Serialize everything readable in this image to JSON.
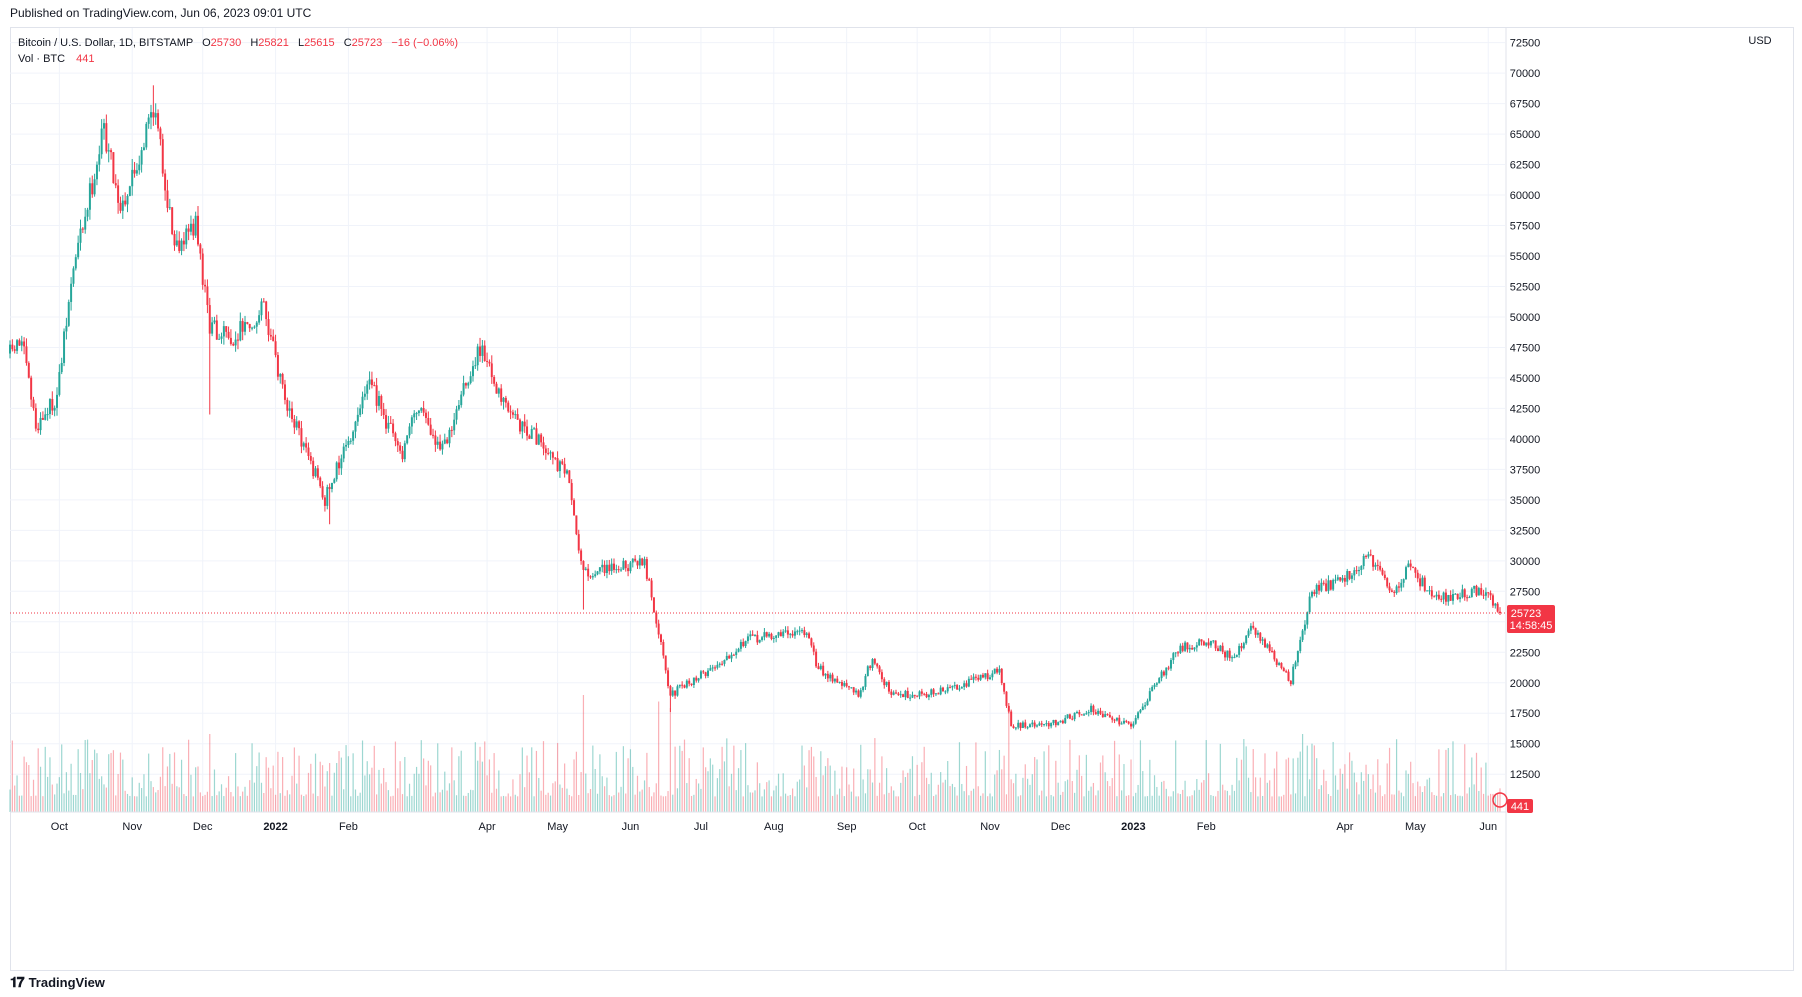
{
  "header": {
    "published": "Published on TradingView.com, Jun 06, 2023 09:01 UTC"
  },
  "legend": {
    "symbol": "Bitcoin / U.S. Dollar, 1D, BITSTAMP",
    "o_label": "O",
    "o_value": "25730",
    "h_label": "H",
    "h_value": "25821",
    "l_label": "L",
    "l_value": "25615",
    "c_label": "C",
    "c_value": "25723",
    "change": "−16 (−0.06%)",
    "vol_label": "Vol · BTC",
    "vol_value": "441"
  },
  "price_axis": {
    "currency": "USD",
    "last_price_label": "25723",
    "countdown": "14:58:45",
    "vol_badge": "441"
  },
  "footer": {
    "brand": "TradingView"
  },
  "colors": {
    "up": "#26a69a",
    "down": "#f23645",
    "grid": "#f0f3fa",
    "axis_text": "#131722"
  },
  "chart_data": {
    "type": "candlestick",
    "title": "Bitcoin / U.S. Dollar, 1D, BITSTAMP",
    "ylabel": "USD",
    "ylim": [
      9400,
      73700
    ],
    "y_ticks": [
      12500,
      15000,
      17500,
      20000,
      22500,
      25000,
      27500,
      30000,
      32500,
      35000,
      37500,
      40000,
      42500,
      45000,
      47500,
      50000,
      52500,
      55000,
      57500,
      60000,
      62500,
      65000,
      67500,
      70000,
      72500
    ],
    "grid": true,
    "x_ticks": [
      {
        "label": "Oct",
        "date": "2021-10-01"
      },
      {
        "label": "Nov",
        "date": "2021-11-01"
      },
      {
        "label": "Dec",
        "date": "2021-12-01"
      },
      {
        "label": "2022",
        "date": "2022-01-01"
      },
      {
        "label": "Feb",
        "date": "2022-02-01"
      },
      {
        "label": "Apr",
        "date": "2022-04-01"
      },
      {
        "label": "May",
        "date": "2022-05-01"
      },
      {
        "label": "Jun",
        "date": "2022-06-01"
      },
      {
        "label": "Jul",
        "date": "2022-07-01"
      },
      {
        "label": "Aug",
        "date": "2022-08-01"
      },
      {
        "label": "Sep",
        "date": "2022-09-01"
      },
      {
        "label": "Oct",
        "date": "2022-10-01"
      },
      {
        "label": "Nov",
        "date": "2022-11-01"
      },
      {
        "label": "Dec",
        "date": "2022-12-01"
      },
      {
        "label": "2023",
        "date": "2023-01-01"
      },
      {
        "label": "Feb",
        "date": "2023-02-01"
      },
      {
        "label": "Apr",
        "date": "2023-04-01"
      },
      {
        "label": "May",
        "date": "2023-05-01"
      },
      {
        "label": "Jun",
        "date": "2023-06-01"
      }
    ],
    "date_range": [
      "2021-09-10",
      "2023-06-06"
    ],
    "last_price": 25723,
    "close_path": [
      {
        "date": "2021-09-10",
        "close": 47000
      },
      {
        "date": "2021-09-15",
        "close": 48000
      },
      {
        "date": "2021-09-21",
        "close": 41000
      },
      {
        "date": "2021-09-30",
        "close": 43500
      },
      {
        "date": "2021-10-07",
        "close": 54000
      },
      {
        "date": "2021-10-20",
        "close": 65500
      },
      {
        "date": "2021-10-27",
        "close": 59000
      },
      {
        "date": "2021-11-03",
        "close": 62500
      },
      {
        "date": "2021-11-10",
        "close": 67500
      },
      {
        "date": "2021-11-19",
        "close": 56000
      },
      {
        "date": "2021-11-28",
        "close": 57500
      },
      {
        "date": "2021-12-04",
        "close": 49000
      },
      {
        "date": "2021-12-14",
        "close": 48500
      },
      {
        "date": "2021-12-27",
        "close": 50700
      },
      {
        "date": "2022-01-05",
        "close": 43500
      },
      {
        "date": "2022-01-22",
        "close": 35000
      },
      {
        "date": "2022-02-10",
        "close": 44500
      },
      {
        "date": "2022-02-24",
        "close": 38500
      },
      {
        "date": "2022-03-03",
        "close": 43000
      },
      {
        "date": "2022-03-12",
        "close": 38800
      },
      {
        "date": "2022-03-29",
        "close": 47500
      },
      {
        "date": "2022-04-10",
        "close": 42000
      },
      {
        "date": "2022-04-25",
        "close": 39500
      },
      {
        "date": "2022-05-05",
        "close": 37000
      },
      {
        "date": "2022-05-12",
        "close": 29000
      },
      {
        "date": "2022-05-28",
        "close": 29500
      },
      {
        "date": "2022-06-07",
        "close": 30000
      },
      {
        "date": "2022-06-18",
        "close": 19000
      },
      {
        "date": "2022-07-08",
        "close": 21500
      },
      {
        "date": "2022-07-20",
        "close": 23500
      },
      {
        "date": "2022-08-14",
        "close": 24300
      },
      {
        "date": "2022-08-20",
        "close": 21200
      },
      {
        "date": "2022-09-06",
        "close": 19000
      },
      {
        "date": "2022-09-12",
        "close": 22000
      },
      {
        "date": "2022-09-20",
        "close": 19000
      },
      {
        "date": "2022-10-10",
        "close": 19200
      },
      {
        "date": "2022-11-05",
        "close": 21000
      },
      {
        "date": "2022-11-10",
        "close": 16500
      },
      {
        "date": "2022-11-25",
        "close": 16500
      },
      {
        "date": "2022-12-14",
        "close": 17800
      },
      {
        "date": "2022-12-31",
        "close": 16500
      },
      {
        "date": "2023-01-20",
        "close": 22800
      },
      {
        "date": "2023-02-03",
        "close": 23400
      },
      {
        "date": "2023-02-13",
        "close": 21800
      },
      {
        "date": "2023-02-20",
        "close": 24700
      },
      {
        "date": "2023-03-09",
        "close": 20200
      },
      {
        "date": "2023-03-18",
        "close": 27500
      },
      {
        "date": "2023-03-31",
        "close": 28400
      },
      {
        "date": "2023-04-11",
        "close": 30300
      },
      {
        "date": "2023-04-21",
        "close": 27300
      },
      {
        "date": "2023-04-28",
        "close": 29300
      },
      {
        "date": "2023-05-11",
        "close": 26900
      },
      {
        "date": "2023-05-29",
        "close": 27700
      },
      {
        "date": "2023-06-06",
        "close": 25723
      }
    ],
    "spikes": [
      {
        "date": "2021-12-04",
        "low": 42000
      },
      {
        "date": "2022-01-24",
        "low": 33000
      },
      {
        "date": "2022-05-12",
        "low": 26000
      },
      {
        "date": "2022-06-18",
        "low": 17600
      },
      {
        "date": "2021-11-10",
        "high": 69000
      }
    ],
    "volume_spikes": [
      {
        "date": "2021-12-04",
        "level": 0.6
      },
      {
        "date": "2022-05-12",
        "level": 0.9
      },
      {
        "date": "2022-06-13",
        "level": 0.85
      },
      {
        "date": "2022-06-18",
        "level": 0.8
      },
      {
        "date": "2022-11-09",
        "level": 0.8
      },
      {
        "date": "2023-03-14",
        "level": 0.6
      }
    ]
  }
}
